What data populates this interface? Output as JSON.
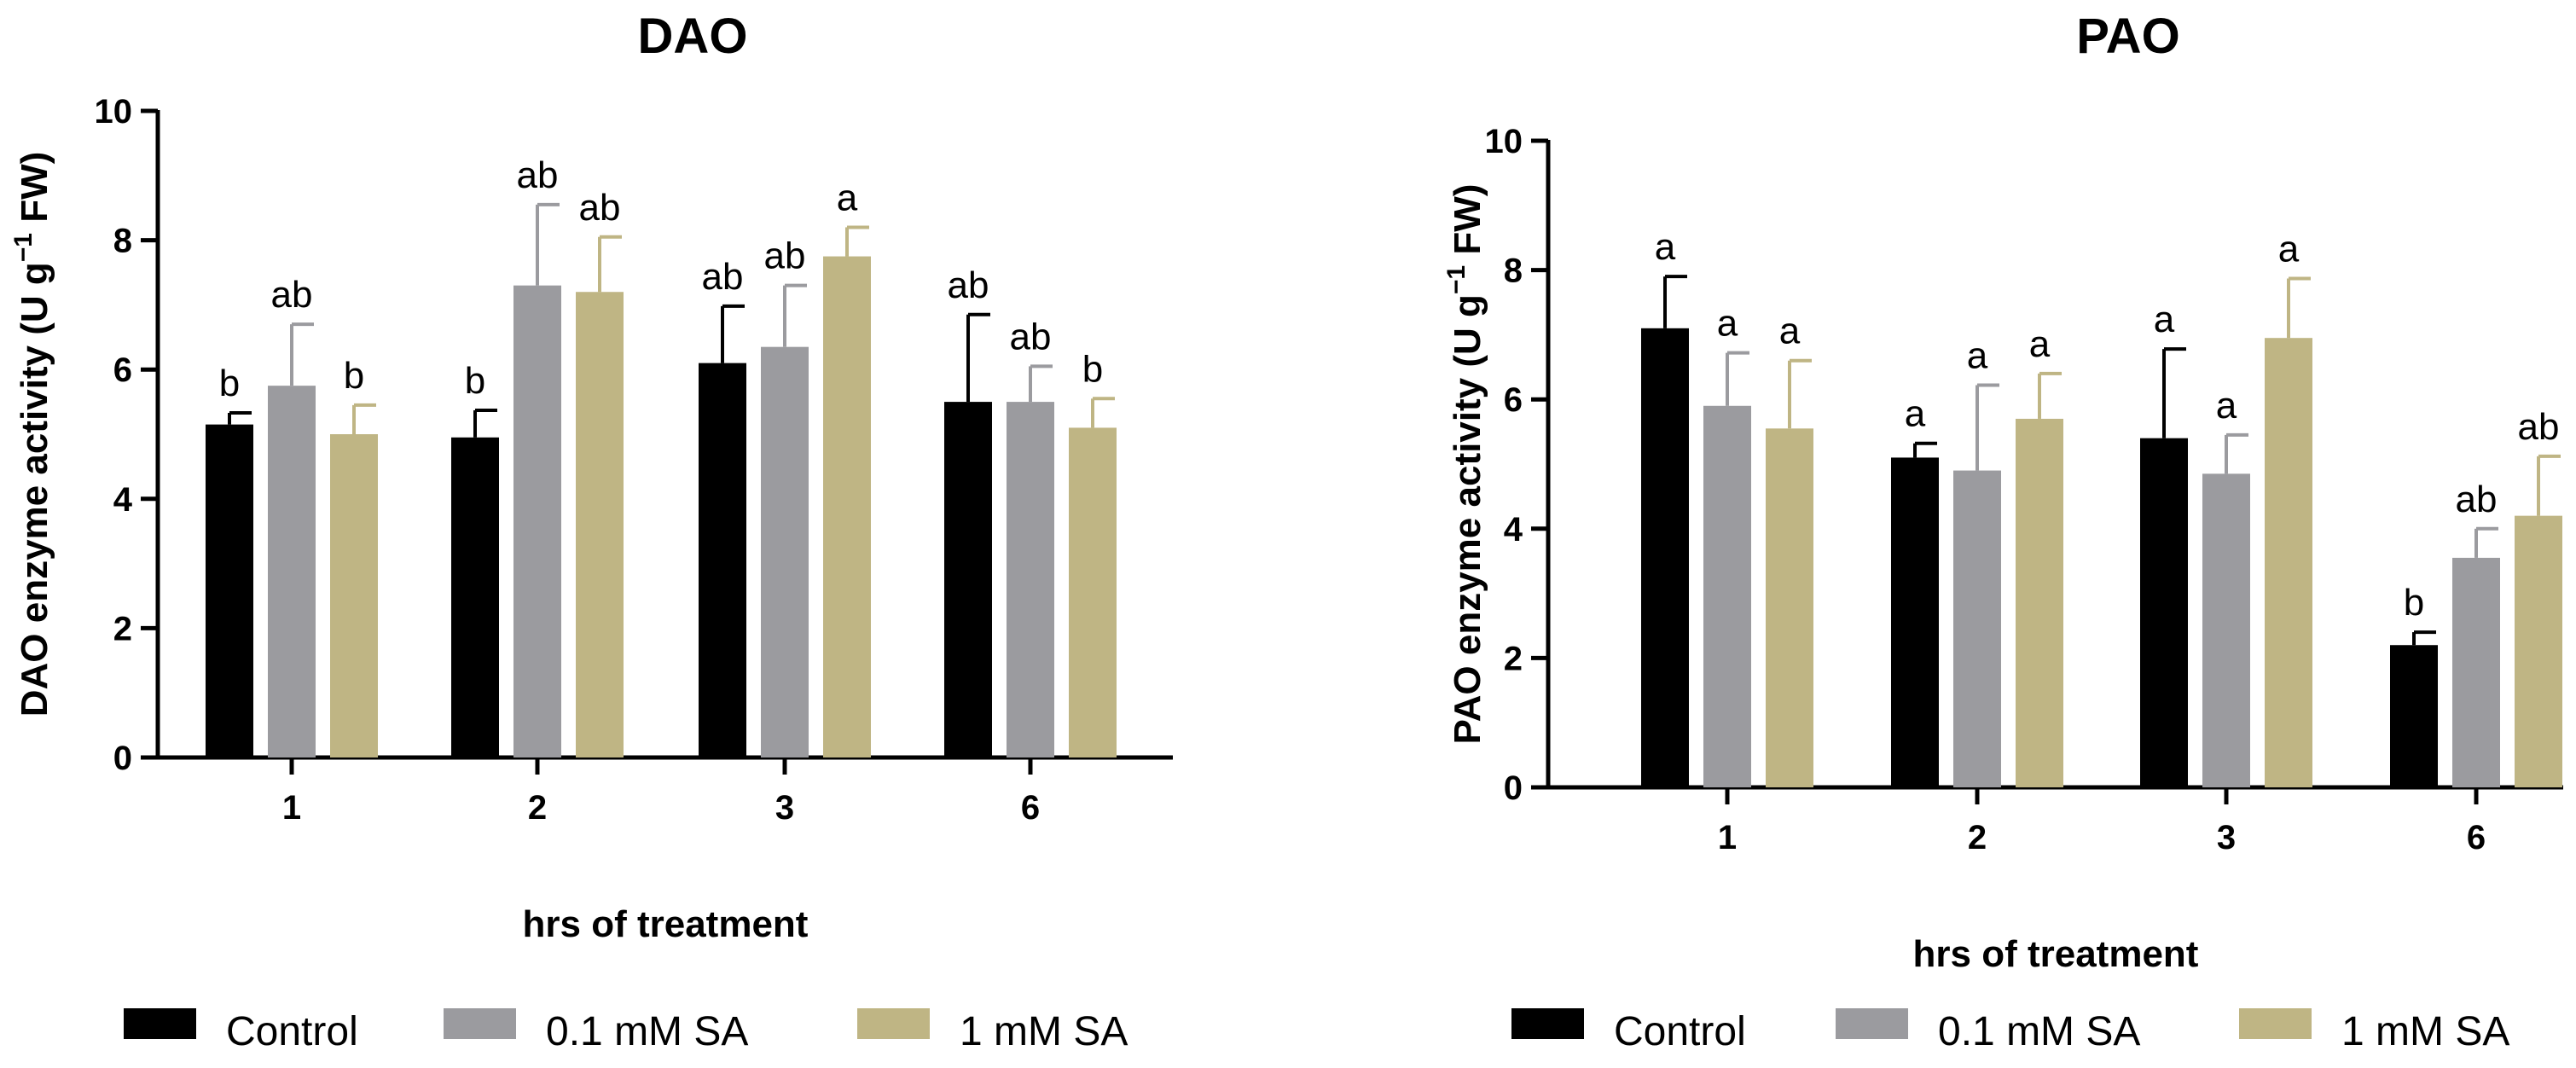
{
  "colors": {
    "Control": "#000000",
    "0.1 mM SA": "#9b9b9f",
    "1 mM SA": "#bfb584"
  },
  "chart_data": [
    {
      "type": "bar",
      "title": "DAO",
      "xlabel": "hrs of treatment",
      "ylabel": "DAO enzyme activity (U g",
      "ylabel_sup": "−1",
      "ylabel_tail": " FW)",
      "ylim": [
        0,
        10
      ],
      "yticks": [
        "0",
        "2",
        "4",
        "6",
        "8",
        "10"
      ],
      "categories": [
        "1",
        "2",
        "3",
        "6"
      ],
      "legend": [
        "Control",
        "0.1 mM SA",
        "1 mM SA"
      ],
      "series": [
        {
          "name": "Control",
          "values": [
            5.15,
            4.95,
            6.1,
            5.5
          ],
          "errors": [
            0.18,
            0.42,
            0.88,
            1.35
          ],
          "labels": [
            "b",
            "b",
            "ab",
            "ab"
          ]
        },
        {
          "name": "0.1 mM SA",
          "values": [
            5.75,
            7.3,
            6.35,
            5.5
          ],
          "errors": [
            0.95,
            1.25,
            0.95,
            0.55
          ],
          "labels": [
            "ab",
            "ab",
            "ab",
            "ab"
          ]
        },
        {
          "name": "1 mM SA",
          "values": [
            5.0,
            7.2,
            7.75,
            5.1
          ],
          "errors": [
            0.45,
            0.85,
            0.45,
            0.45
          ],
          "labels": [
            "b",
            "ab",
            "a",
            "b"
          ]
        }
      ]
    },
    {
      "type": "bar",
      "title": "PAO",
      "xlabel": "hrs of treatment",
      "ylabel": "PAO enzyme activity (U g",
      "ylabel_sup": "−1",
      "ylabel_tail": " FW)",
      "ylim": [
        0,
        10
      ],
      "yticks": [
        "0",
        "2",
        "4",
        "6",
        "8",
        "10"
      ],
      "categories": [
        "1",
        "2",
        "3",
        "6"
      ],
      "legend": [
        "Control",
        "0.1 mM SA",
        "1 mM SA"
      ],
      "series": [
        {
          "name": "Control",
          "values": [
            7.1,
            5.1,
            5.4,
            2.2
          ],
          "errors": [
            0.8,
            0.22,
            1.38,
            0.2
          ],
          "labels": [
            "a",
            "a",
            "a",
            "b"
          ]
        },
        {
          "name": "0.1 mM SA",
          "values": [
            5.9,
            4.9,
            4.85,
            3.55
          ],
          "errors": [
            0.82,
            1.32,
            0.6,
            0.45
          ],
          "labels": [
            "a",
            "a",
            "a",
            "ab"
          ]
        },
        {
          "name": "1 mM SA",
          "values": [
            5.55,
            5.7,
            6.95,
            4.2
          ],
          "errors": [
            1.05,
            0.7,
            0.92,
            0.92
          ],
          "labels": [
            "a",
            "a",
            "a",
            "ab"
          ]
        }
      ]
    }
  ]
}
